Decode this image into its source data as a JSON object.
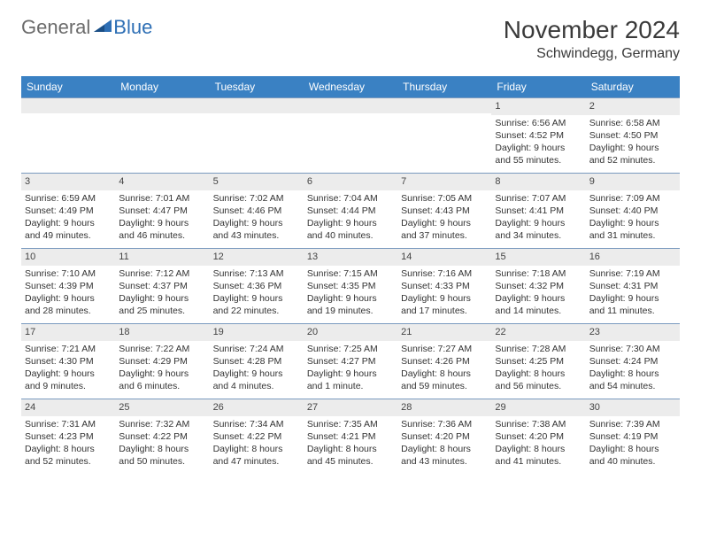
{
  "logo": {
    "general": "General",
    "blue": "Blue"
  },
  "title": "November 2024",
  "location": "Schwindegg, Germany",
  "day_names": [
    "Sunday",
    "Monday",
    "Tuesday",
    "Wednesday",
    "Thursday",
    "Friday",
    "Saturday"
  ],
  "colors": {
    "header_bg": "#3a81c3",
    "header_text": "#ffffff",
    "row_border": "#7a9abf",
    "daynum_bg": "#ececec",
    "body_text": "#333333",
    "logo_gray": "#6b6b6b",
    "logo_blue": "#2e6fb5"
  },
  "weeks": [
    [
      {
        "blank": true
      },
      {
        "blank": true
      },
      {
        "blank": true
      },
      {
        "blank": true
      },
      {
        "blank": true
      },
      {
        "num": "1",
        "sunrise": "Sunrise: 6:56 AM",
        "sunset": "Sunset: 4:52 PM",
        "daylight": "Daylight: 9 hours and 55 minutes."
      },
      {
        "num": "2",
        "sunrise": "Sunrise: 6:58 AM",
        "sunset": "Sunset: 4:50 PM",
        "daylight": "Daylight: 9 hours and 52 minutes."
      }
    ],
    [
      {
        "num": "3",
        "sunrise": "Sunrise: 6:59 AM",
        "sunset": "Sunset: 4:49 PM",
        "daylight": "Daylight: 9 hours and 49 minutes."
      },
      {
        "num": "4",
        "sunrise": "Sunrise: 7:01 AM",
        "sunset": "Sunset: 4:47 PM",
        "daylight": "Daylight: 9 hours and 46 minutes."
      },
      {
        "num": "5",
        "sunrise": "Sunrise: 7:02 AM",
        "sunset": "Sunset: 4:46 PM",
        "daylight": "Daylight: 9 hours and 43 minutes."
      },
      {
        "num": "6",
        "sunrise": "Sunrise: 7:04 AM",
        "sunset": "Sunset: 4:44 PM",
        "daylight": "Daylight: 9 hours and 40 minutes."
      },
      {
        "num": "7",
        "sunrise": "Sunrise: 7:05 AM",
        "sunset": "Sunset: 4:43 PM",
        "daylight": "Daylight: 9 hours and 37 minutes."
      },
      {
        "num": "8",
        "sunrise": "Sunrise: 7:07 AM",
        "sunset": "Sunset: 4:41 PM",
        "daylight": "Daylight: 9 hours and 34 minutes."
      },
      {
        "num": "9",
        "sunrise": "Sunrise: 7:09 AM",
        "sunset": "Sunset: 4:40 PM",
        "daylight": "Daylight: 9 hours and 31 minutes."
      }
    ],
    [
      {
        "num": "10",
        "sunrise": "Sunrise: 7:10 AM",
        "sunset": "Sunset: 4:39 PM",
        "daylight": "Daylight: 9 hours and 28 minutes."
      },
      {
        "num": "11",
        "sunrise": "Sunrise: 7:12 AM",
        "sunset": "Sunset: 4:37 PM",
        "daylight": "Daylight: 9 hours and 25 minutes."
      },
      {
        "num": "12",
        "sunrise": "Sunrise: 7:13 AM",
        "sunset": "Sunset: 4:36 PM",
        "daylight": "Daylight: 9 hours and 22 minutes."
      },
      {
        "num": "13",
        "sunrise": "Sunrise: 7:15 AM",
        "sunset": "Sunset: 4:35 PM",
        "daylight": "Daylight: 9 hours and 19 minutes."
      },
      {
        "num": "14",
        "sunrise": "Sunrise: 7:16 AM",
        "sunset": "Sunset: 4:33 PM",
        "daylight": "Daylight: 9 hours and 17 minutes."
      },
      {
        "num": "15",
        "sunrise": "Sunrise: 7:18 AM",
        "sunset": "Sunset: 4:32 PM",
        "daylight": "Daylight: 9 hours and 14 minutes."
      },
      {
        "num": "16",
        "sunrise": "Sunrise: 7:19 AM",
        "sunset": "Sunset: 4:31 PM",
        "daylight": "Daylight: 9 hours and 11 minutes."
      }
    ],
    [
      {
        "num": "17",
        "sunrise": "Sunrise: 7:21 AM",
        "sunset": "Sunset: 4:30 PM",
        "daylight": "Daylight: 9 hours and 9 minutes."
      },
      {
        "num": "18",
        "sunrise": "Sunrise: 7:22 AM",
        "sunset": "Sunset: 4:29 PM",
        "daylight": "Daylight: 9 hours and 6 minutes."
      },
      {
        "num": "19",
        "sunrise": "Sunrise: 7:24 AM",
        "sunset": "Sunset: 4:28 PM",
        "daylight": "Daylight: 9 hours and 4 minutes."
      },
      {
        "num": "20",
        "sunrise": "Sunrise: 7:25 AM",
        "sunset": "Sunset: 4:27 PM",
        "daylight": "Daylight: 9 hours and 1 minute."
      },
      {
        "num": "21",
        "sunrise": "Sunrise: 7:27 AM",
        "sunset": "Sunset: 4:26 PM",
        "daylight": "Daylight: 8 hours and 59 minutes."
      },
      {
        "num": "22",
        "sunrise": "Sunrise: 7:28 AM",
        "sunset": "Sunset: 4:25 PM",
        "daylight": "Daylight: 8 hours and 56 minutes."
      },
      {
        "num": "23",
        "sunrise": "Sunrise: 7:30 AM",
        "sunset": "Sunset: 4:24 PM",
        "daylight": "Daylight: 8 hours and 54 minutes."
      }
    ],
    [
      {
        "num": "24",
        "sunrise": "Sunrise: 7:31 AM",
        "sunset": "Sunset: 4:23 PM",
        "daylight": "Daylight: 8 hours and 52 minutes."
      },
      {
        "num": "25",
        "sunrise": "Sunrise: 7:32 AM",
        "sunset": "Sunset: 4:22 PM",
        "daylight": "Daylight: 8 hours and 50 minutes."
      },
      {
        "num": "26",
        "sunrise": "Sunrise: 7:34 AM",
        "sunset": "Sunset: 4:22 PM",
        "daylight": "Daylight: 8 hours and 47 minutes."
      },
      {
        "num": "27",
        "sunrise": "Sunrise: 7:35 AM",
        "sunset": "Sunset: 4:21 PM",
        "daylight": "Daylight: 8 hours and 45 minutes."
      },
      {
        "num": "28",
        "sunrise": "Sunrise: 7:36 AM",
        "sunset": "Sunset: 4:20 PM",
        "daylight": "Daylight: 8 hours and 43 minutes."
      },
      {
        "num": "29",
        "sunrise": "Sunrise: 7:38 AM",
        "sunset": "Sunset: 4:20 PM",
        "daylight": "Daylight: 8 hours and 41 minutes."
      },
      {
        "num": "30",
        "sunrise": "Sunrise: 7:39 AM",
        "sunset": "Sunset: 4:19 PM",
        "daylight": "Daylight: 8 hours and 40 minutes."
      }
    ]
  ]
}
